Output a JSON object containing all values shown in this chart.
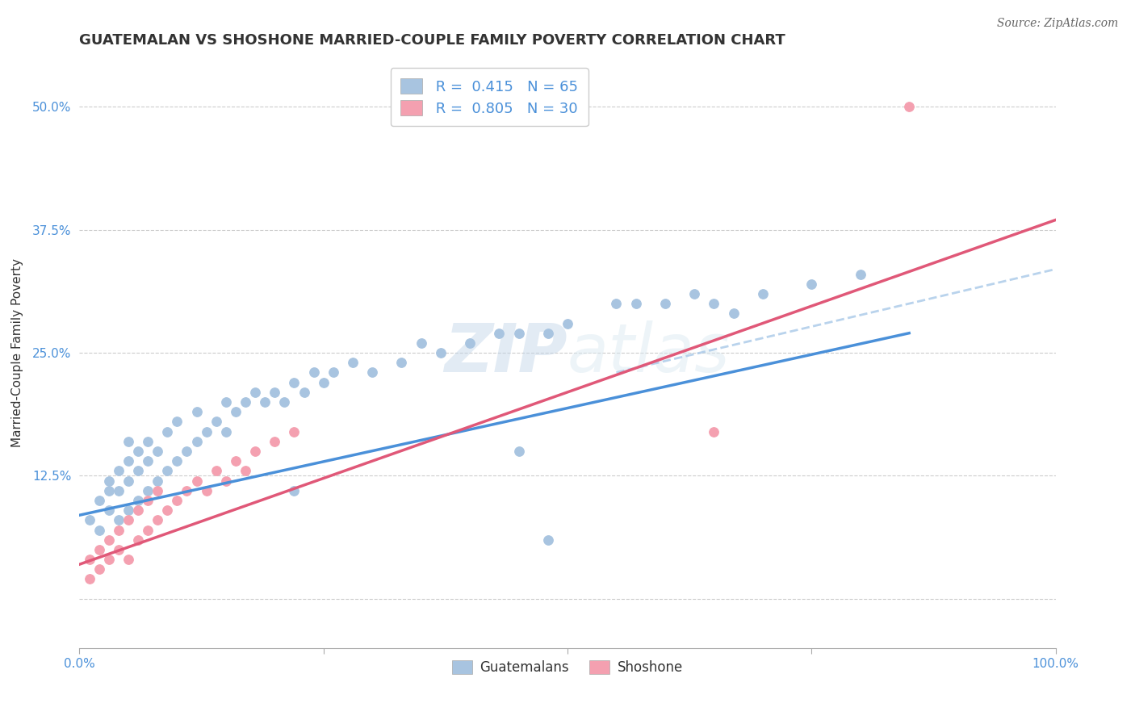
{
  "title": "GUATEMALAN VS SHOSHONE MARRIED-COUPLE FAMILY POVERTY CORRELATION CHART",
  "source": "Source: ZipAtlas.com",
  "ylabel": "Married-Couple Family Poverty",
  "xlim": [
    0,
    100
  ],
  "ylim": [
    -5,
    55
  ],
  "guatemalan_color": "#a8c4e0",
  "shoshone_color": "#f4a0b0",
  "guatemalan_line_color": "#4a90d9",
  "shoshone_line_color": "#e05878",
  "dashed_line_color": "#a8c8e8",
  "legend_R_guatemalan": "0.415",
  "legend_N_guatemalan": "65",
  "legend_R_shoshone": "0.805",
  "legend_N_shoshone": "30",
  "title_fontsize": 13,
  "axis_label_fontsize": 11,
  "tick_fontsize": 11,
  "legend_fontsize": 13,
  "guatemalan_x": [
    1,
    2,
    2,
    3,
    3,
    3,
    4,
    4,
    4,
    5,
    5,
    5,
    5,
    6,
    6,
    6,
    7,
    7,
    7,
    8,
    8,
    9,
    9,
    10,
    10,
    11,
    12,
    12,
    13,
    14,
    15,
    15,
    16,
    17,
    18,
    19,
    20,
    21,
    22,
    22,
    23,
    24,
    25,
    26,
    28,
    30,
    33,
    35,
    37,
    40,
    43,
    45,
    48,
    50,
    55,
    57,
    60,
    63,
    65,
    67,
    70,
    75,
    80,
    45,
    48
  ],
  "guatemalan_y": [
    8,
    7,
    10,
    9,
    11,
    12,
    8,
    11,
    13,
    9,
    12,
    14,
    16,
    10,
    13,
    15,
    11,
    14,
    16,
    12,
    15,
    13,
    17,
    14,
    18,
    15,
    16,
    19,
    17,
    18,
    17,
    20,
    19,
    20,
    21,
    20,
    21,
    20,
    22,
    11,
    21,
    23,
    22,
    23,
    24,
    23,
    24,
    26,
    25,
    26,
    27,
    27,
    27,
    28,
    30,
    30,
    30,
    31,
    30,
    29,
    31,
    32,
    33,
    15,
    6
  ],
  "shoshone_x": [
    1,
    1,
    2,
    2,
    3,
    3,
    4,
    4,
    5,
    5,
    6,
    6,
    7,
    7,
    8,
    8,
    9,
    10,
    11,
    12,
    13,
    14,
    15,
    16,
    17,
    18,
    20,
    22,
    85,
    65
  ],
  "shoshone_y": [
    2,
    4,
    3,
    5,
    4,
    6,
    5,
    7,
    4,
    8,
    6,
    9,
    7,
    10,
    8,
    11,
    9,
    10,
    11,
    12,
    11,
    13,
    12,
    14,
    13,
    15,
    16,
    17,
    50,
    17
  ],
  "blue_line_x": [
    0,
    85
  ],
  "blue_line_y": [
    8.5,
    27.0
  ],
  "pink_line_x": [
    0,
    100
  ],
  "pink_line_y": [
    3.5,
    38.5
  ],
  "dashed_line_x": [
    55,
    100
  ],
  "dashed_line_y": [
    23.0,
    33.5
  ]
}
